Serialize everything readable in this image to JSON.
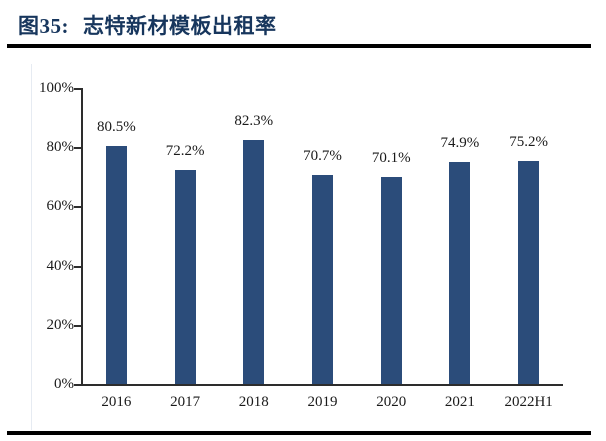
{
  "figure": {
    "number": "图35:",
    "name": "志特新材模板出租率"
  },
  "colors": {
    "bar": "#2b4c7a",
    "title": "#17365d",
    "rule": "#000000",
    "axis": "#2d2d2d",
    "text": "#1a1a1a"
  },
  "chart_data": {
    "type": "bar",
    "title": "志特新材模板出租率",
    "categories": [
      "2016",
      "2017",
      "2018",
      "2019",
      "2020",
      "2021",
      "2022H1"
    ],
    "values": [
      80.5,
      72.2,
      82.3,
      70.7,
      70.1,
      74.9,
      75.2
    ],
    "value_labels": [
      "80.5%",
      "72.2%",
      "82.3%",
      "70.7%",
      "70.1%",
      "74.9%",
      "75.2%"
    ],
    "y_tick_labels": [
      "100%",
      "80%",
      "60%",
      "40%",
      "20%",
      "0%"
    ],
    "ylim": [
      0,
      100
    ],
    "xlabel": "",
    "ylabel": "",
    "grid": false,
    "legend": false
  }
}
